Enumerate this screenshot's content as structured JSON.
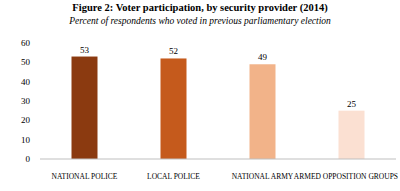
{
  "chart_data": {
    "type": "bar",
    "title": "Figure 2: Voter participation, by security provider (2014)",
    "subtitle": "Percent of respondents who voted in previous parliamentary election",
    "categories": [
      "NATIONAL POLICE",
      "LOCAL POLICE",
      "NATIONAL ARMY",
      "ARMED OPPOSITION GROUPS"
    ],
    "values": [
      53,
      52,
      49,
      25
    ],
    "colors": [
      "#8b3a10",
      "#c55a1c",
      "#f2b389",
      "#fbe0d2"
    ],
    "ylim": [
      0,
      60
    ],
    "yticks": [
      0,
      10,
      20,
      30,
      40,
      50,
      60
    ],
    "grid": false,
    "data_labels": true
  }
}
